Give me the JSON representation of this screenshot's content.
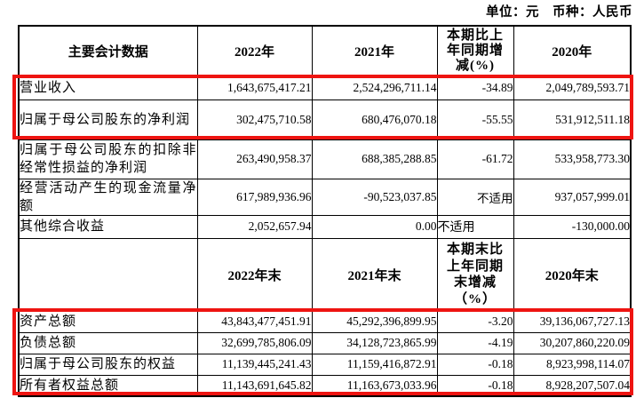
{
  "meta": {
    "unit_note": "单位：元　币种：人民币"
  },
  "annotations": {
    "highlight_color": "#ee1411",
    "boxes": [
      {
        "name": "highlight-box-top",
        "covers": "营业收入、归属于母公司股东的净利润"
      },
      {
        "name": "highlight-box-bottom",
        "covers": "资产总额、负债总额、归属于母公司股东的权益、所有者权益总额"
      }
    ]
  },
  "table": {
    "section1": {
      "headers": [
        "主要会计数据",
        "2022年",
        "2021年",
        "本期比上年同期增减(%)",
        "2020年"
      ],
      "rows": [
        {
          "label": "营业收入",
          "v2022": "1,643,675,417.21",
          "v2021": "2,524,296,711.14",
          "pct": "-34.89",
          "v2020": "2,049,789,593.71"
        },
        {
          "label": "归属于母公司股东的净利润",
          "v2022": "302,475,710.58",
          "v2021": "680,476,070.18",
          "pct": "-55.55",
          "v2020": "531,912,511.18"
        },
        {
          "label": "归属于母公司股东的扣除非经常性损益的净利润",
          "v2022": "263,490,958.37",
          "v2021": "688,385,288.85",
          "pct": "-61.72",
          "v2020": "533,958,773.30"
        },
        {
          "label": "经营活动产生的现金流量净额",
          "v2022": "617,989,936.96",
          "v2021": "-90,523,037.85",
          "pct": "不适用",
          "v2020": "937,057,999.01"
        },
        {
          "label": "其他综合收益",
          "v2022": "2,052,657.94",
          "v2021": "0.00",
          "pct": "不适用",
          "v2020": "-130,000.00"
        }
      ]
    },
    "section2": {
      "headers": [
        "",
        "2022年末",
        "2021年末",
        "本期末比上年同期末增减（%）",
        "2020年末"
      ],
      "rows": [
        {
          "label": "资产总额",
          "v2022": "43,843,477,451.91",
          "v2021": "45,292,396,899.95",
          "pct": "-3.20",
          "v2020": "39,136,067,727.13"
        },
        {
          "label": "负债总额",
          "v2022": "32,699,785,806.09",
          "v2021": "34,128,723,865.99",
          "pct": "-4.19",
          "v2020": "30,207,860,220.09"
        },
        {
          "label": "归属于母公司股东的权益",
          "v2022": "11,139,445,241.43",
          "v2021": "11,159,416,872.91",
          "pct": "-0.18",
          "v2020": "8,923,998,114.07"
        },
        {
          "label": "所有者权益总额",
          "v2022": "11,143,691,645.82",
          "v2021": "11,163,673,033.96",
          "pct": "-0.18",
          "v2020": "8,928,207,507.04"
        }
      ]
    }
  }
}
